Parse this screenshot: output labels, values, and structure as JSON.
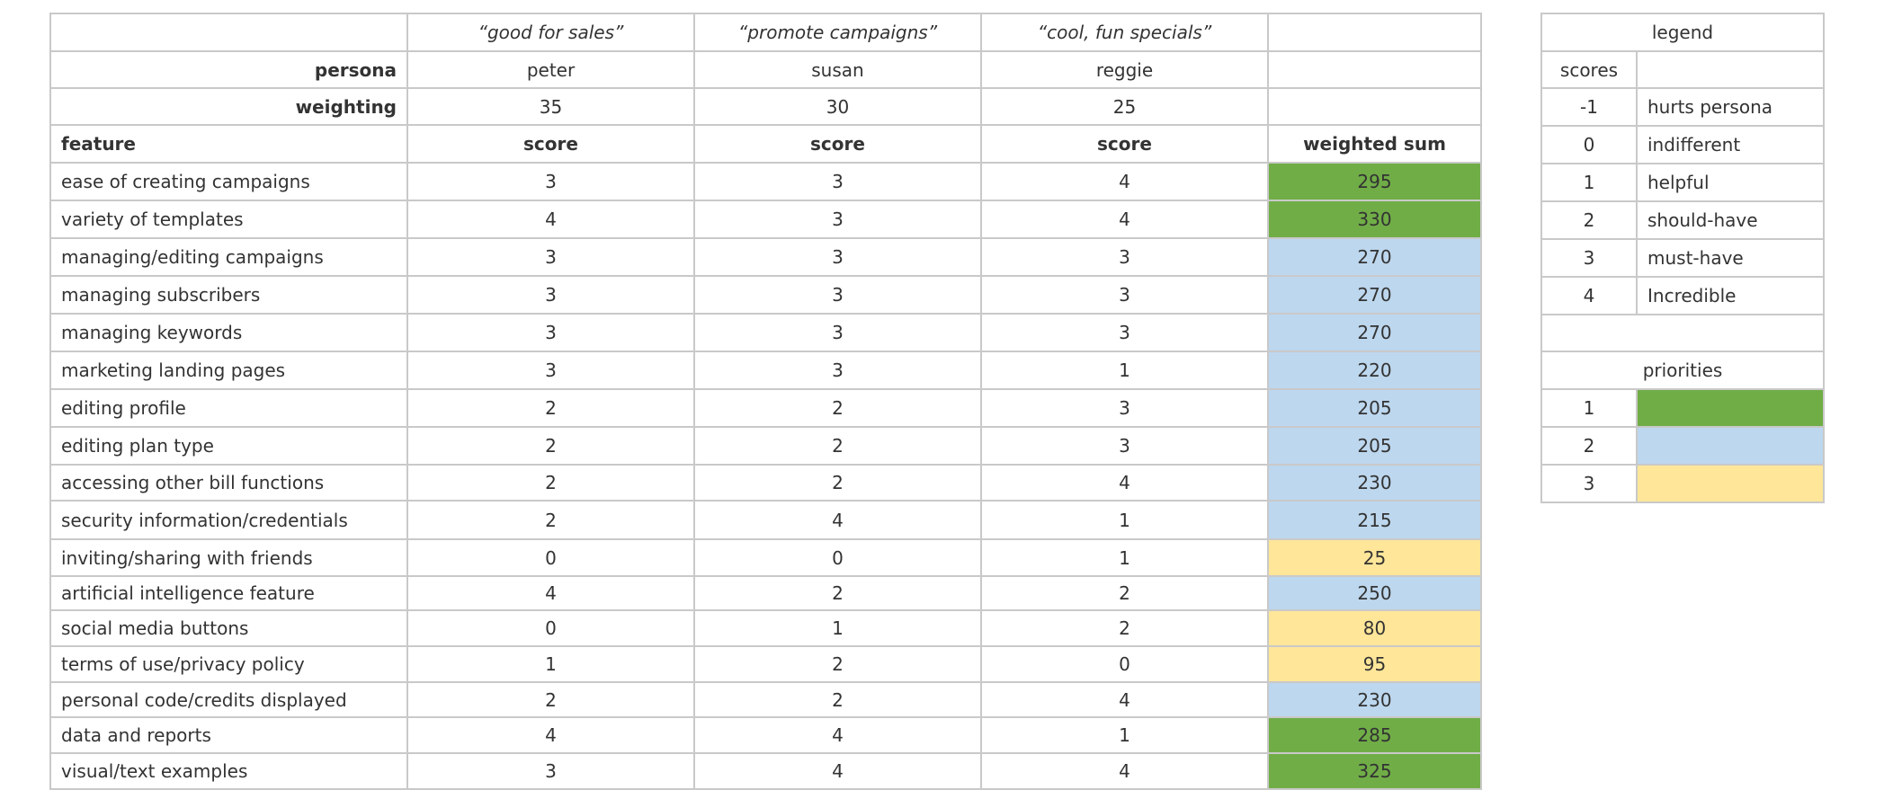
{
  "header": {
    "quotes": [
      "“good for sales”",
      "“promote campaigns”",
      "“cool, fun specials”"
    ],
    "persona_label": "persona",
    "personas": [
      "peter",
      "susan",
      "reggie"
    ],
    "weighting_label": "weighting",
    "weightings": [
      "35",
      "30",
      "25"
    ],
    "feature_label": "feature",
    "score_label": "score",
    "sum_label": "weighted sum"
  },
  "rows": [
    {
      "feature": "ease of creating campaigns",
      "scores": [
        "3",
        "3",
        "4"
      ],
      "sum": "295",
      "priority": 1
    },
    {
      "feature": "variety of templates",
      "scores": [
        "4",
        "3",
        "4"
      ],
      "sum": "330",
      "priority": 1
    },
    {
      "feature": "managing/editing campaigns",
      "scores": [
        "3",
        "3",
        "3"
      ],
      "sum": "270",
      "priority": 2
    },
    {
      "feature": "managing subscribers",
      "scores": [
        "3",
        "3",
        "3"
      ],
      "sum": "270",
      "priority": 2
    },
    {
      "feature": "managing keywords",
      "scores": [
        "3",
        "3",
        "3"
      ],
      "sum": "270",
      "priority": 2
    },
    {
      "feature": "marketing landing pages",
      "scores": [
        "3",
        "3",
        "1"
      ],
      "sum": "220",
      "priority": 2
    },
    {
      "feature": "editing profile",
      "scores": [
        "2",
        "2",
        "3"
      ],
      "sum": "205",
      "priority": 2
    },
    {
      "feature": "editing plan type",
      "scores": [
        "2",
        "2",
        "3"
      ],
      "sum": "205",
      "priority": 2
    },
    {
      "feature": "accessing other bill functions",
      "scores": [
        "2",
        "2",
        "4"
      ],
      "sum": "230",
      "priority": 2
    },
    {
      "feature": "security information/credentials",
      "scores": [
        "2",
        "4",
        "1"
      ],
      "sum": "215",
      "priority": 2
    },
    {
      "feature": "inviting/sharing with friends",
      "scores": [
        "0",
        "0",
        "1"
      ],
      "sum": "25",
      "priority": 3
    },
    {
      "feature": "artificial intelligence feature",
      "scores": [
        "4",
        "2",
        "2"
      ],
      "sum": "250",
      "priority": 2
    },
    {
      "feature": "social media buttons",
      "scores": [
        "0",
        "1",
        "2"
      ],
      "sum": "80",
      "priority": 3
    },
    {
      "feature": "terms of use/privacy policy",
      "scores": [
        "1",
        "2",
        "0"
      ],
      "sum": "95",
      "priority": 3
    },
    {
      "feature": "personal code/credits displayed",
      "scores": [
        "2",
        "2",
        "4"
      ],
      "sum": "230",
      "priority": 2
    },
    {
      "feature": "data and reports",
      "scores": [
        "4",
        "4",
        "1"
      ],
      "sum": "285",
      "priority": 1
    },
    {
      "feature": "visual/text examples",
      "scores": [
        "3",
        "4",
        "4"
      ],
      "sum": "325",
      "priority": 1
    }
  ],
  "legend": {
    "title": "legend",
    "scores_label": "scores",
    "scores": [
      {
        "value": "-1",
        "meaning": "hurts persona"
      },
      {
        "value": "0",
        "meaning": "indifferent"
      },
      {
        "value": "1",
        "meaning": "helpful"
      },
      {
        "value": "2",
        "meaning": "should-have"
      },
      {
        "value": "3",
        "meaning": "must-have"
      },
      {
        "value": "4",
        "meaning": "Incredible"
      }
    ],
    "priorities_label": "priorities",
    "priorities": [
      {
        "value": "1",
        "color": "#70ad47"
      },
      {
        "value": "2",
        "color": "#bdd7ee"
      },
      {
        "value": "3",
        "color": "#ffe699"
      }
    ]
  }
}
